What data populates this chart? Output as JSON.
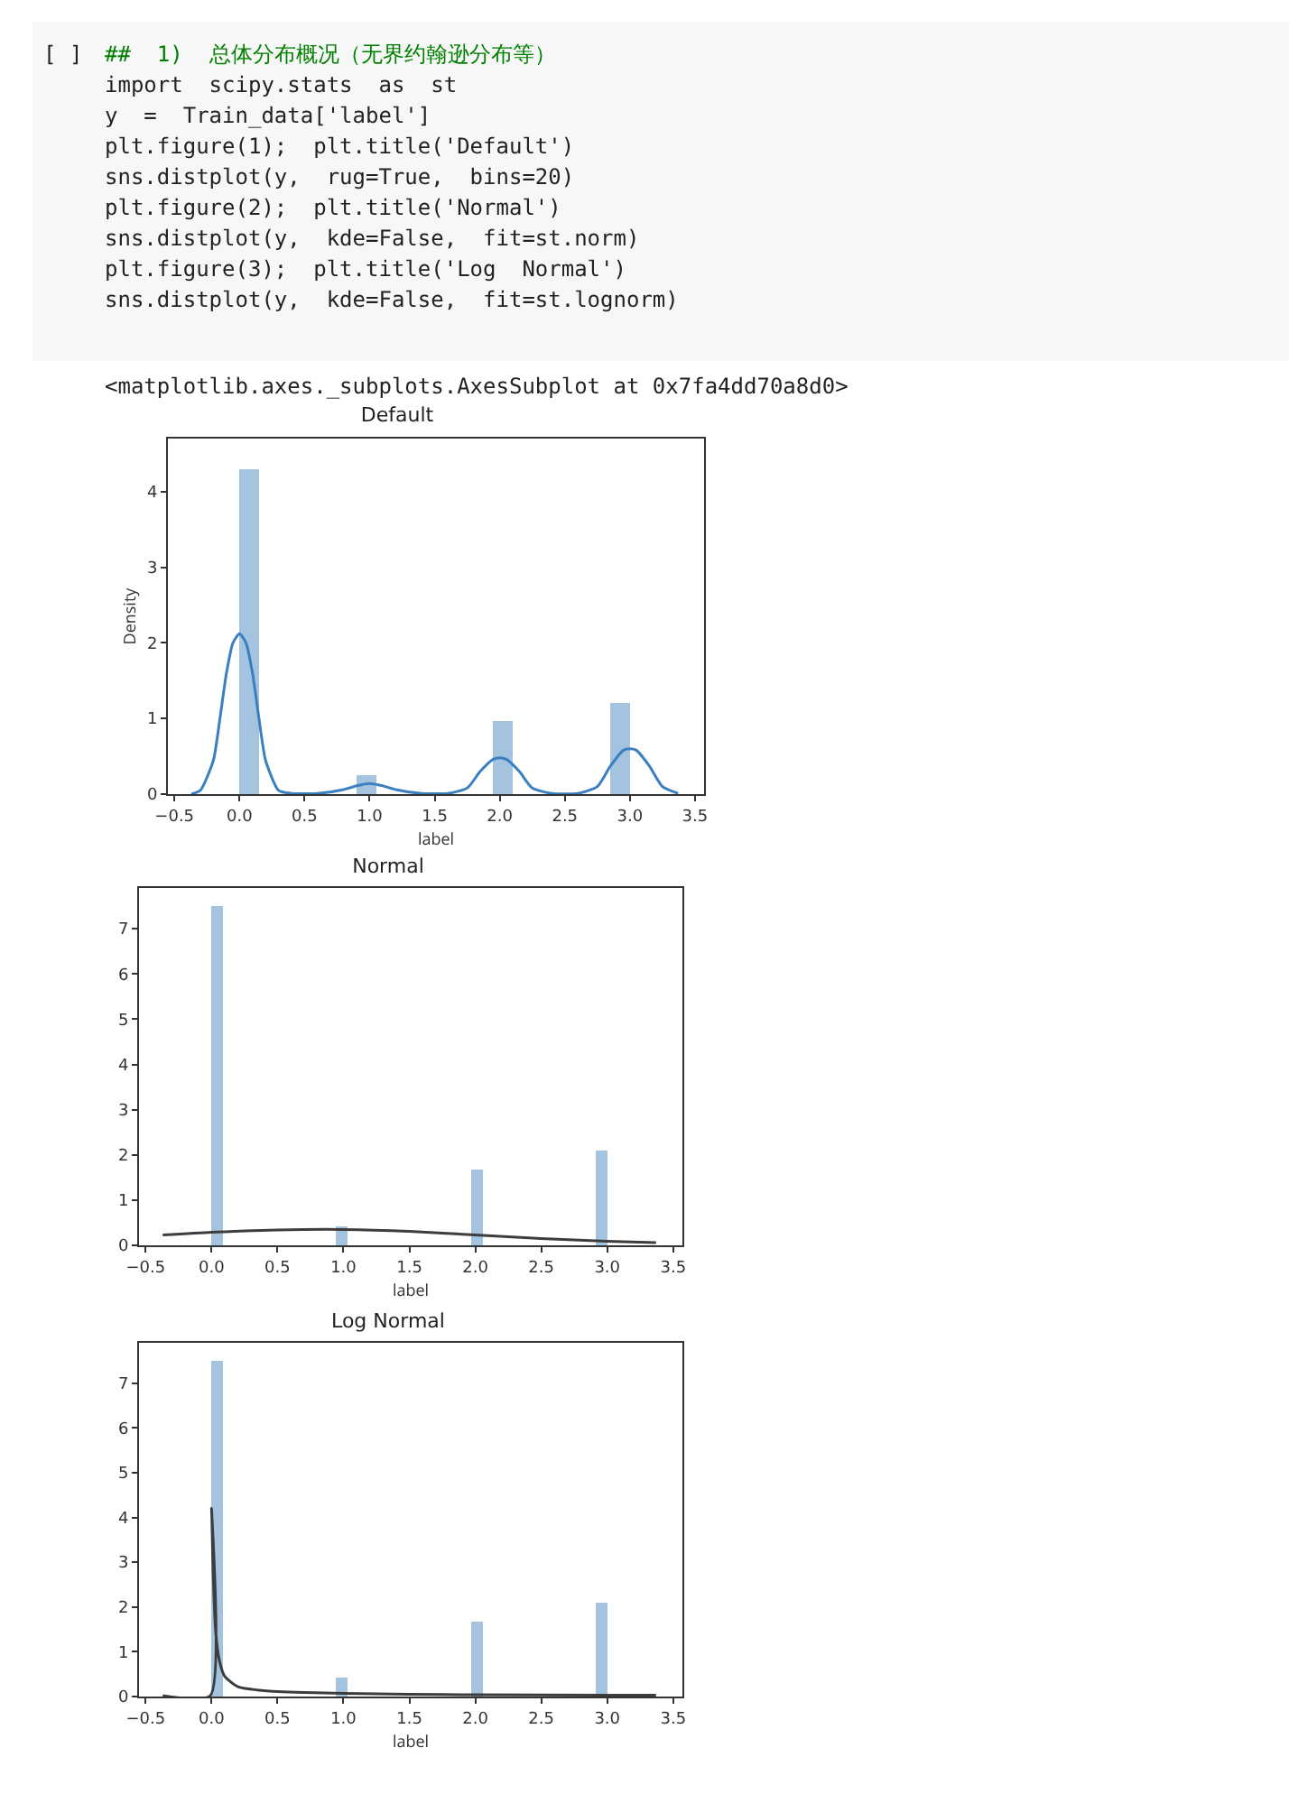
{
  "chart_data": [
    {
      "type": "histogram",
      "title": "Default",
      "xlabel": "label",
      "ylabel": "Density",
      "annotations": [
        "[ ]",
        "##  1)  总体分布概况（无界约翰逊分布等）",
        "import  scipy.stats  as  st",
        "y  =  Train_data['label']",
        "plt.figure(1);  plt.title('Default')",
        "sns.distplot(y,  rug=True,  bins=20)",
        "plt.figure(2);  plt.title('Normal')",
        "sns.distplot(y,  kde=False,  fit=st.norm)",
        "plt.figure(3);  plt.title('Log  Normal')",
        "sns.distplot(y,  kde=False,  fit=st.lognorm)",
        "<matplotlib.axes._subplots.AxesSubplot at 0x7fa4dd70a8d0>"
      ],
      "bins": [
        0,
        0.15,
        0.3,
        0.45,
        0.6,
        0.75,
        0.9,
        1.05,
        1.2,
        1.35,
        1.5,
        1.65,
        1.8,
        1.95,
        2.1,
        2.25,
        2.4,
        2.55,
        2.7,
        2.85,
        3.0
      ],
      "values": [
        4.3,
        0,
        0,
        0,
        0,
        0,
        0.25,
        0,
        0,
        0,
        0,
        0,
        0,
        0.97,
        0,
        0,
        0,
        0,
        0,
        1.2
      ],
      "color": "#a3c3df",
      "series": [
        {
          "type": "line",
          "color": "#3a80c0",
          "x": [
            -0.37,
            -0.3,
            -0.2,
            -0.15,
            -0.1,
            -0.05,
            0,
            0.05,
            0.1,
            0.15,
            0.2,
            0.3,
            0.4,
            0.6,
            0.8,
            0.9,
            1.0,
            1.1,
            1.2,
            1.4,
            1.6,
            1.75,
            1.85,
            1.95,
            2.0,
            2.05,
            2.15,
            2.25,
            2.4,
            2.6,
            2.75,
            2.85,
            2.95,
            3.0,
            3.05,
            3.15,
            3.25,
            3.37
          ],
          "values": [
            0,
            0.05,
            0.45,
            1.0,
            1.6,
            2.0,
            2.12,
            2.0,
            1.6,
            1.0,
            0.45,
            0.05,
            0.01,
            0.01,
            0.06,
            0.11,
            0.14,
            0.11,
            0.06,
            0.01,
            0.01,
            0.08,
            0.3,
            0.46,
            0.48,
            0.46,
            0.3,
            0.08,
            0.01,
            0.01,
            0.1,
            0.37,
            0.58,
            0.6,
            0.58,
            0.37,
            0.1,
            0.01
          ]
        }
      ],
      "xlim": [
        -0.55,
        3.57
      ],
      "ylim": [
        0,
        4.7
      ],
      "xticks": [
        {
          "value": -0.5,
          "label": "−0.5"
        },
        {
          "value": 0,
          "label": "0.0"
        },
        0.5,
        {
          "value": 1,
          "label": "1.0"
        },
        1.5,
        {
          "value": 2,
          "label": "2.0"
        },
        2.5,
        {
          "value": 3,
          "label": "3.0"
        },
        3.5
      ],
      "yticks": [
        0,
        1,
        2,
        3,
        4
      ],
      "grid": false
    },
    {
      "type": "histogram",
      "title": "Normal",
      "xlabel": "label",
      "bins": [
        0,
        0.086,
        0.171,
        0.257,
        0.343,
        0.429,
        0.514,
        0.6,
        0.686,
        0.771,
        0.857,
        0.943,
        1.029,
        1.114,
        1.2,
        1.286,
        1.371,
        1.457,
        1.543,
        1.629,
        1.714,
        1.8,
        1.886,
        1.971,
        2.057,
        2.143,
        2.229,
        2.314,
        2.4,
        2.486,
        2.571,
        2.657,
        2.743,
        2.829,
        2.914,
        3.0
      ],
      "values": [
        7.5,
        0,
        0,
        0,
        0,
        0,
        0,
        0,
        0,
        0,
        0,
        0.42,
        0,
        0,
        0,
        0,
        0,
        0,
        0,
        0,
        0,
        0,
        0,
        1.67,
        0,
        0,
        0,
        0,
        0,
        0,
        0,
        0,
        0,
        0,
        2.1
      ],
      "color": "#a3c3df",
      "series": [
        {
          "type": "line",
          "color": "#3d3d3d",
          "x": [
            -0.37,
            0,
            0.5,
            1.0,
            1.5,
            2.0,
            2.5,
            3.0,
            3.37
          ],
          "values": [
            0.23,
            0.29,
            0.34,
            0.35,
            0.31,
            0.23,
            0.15,
            0.09,
            0.06
          ]
        }
      ],
      "xlim": [
        -0.55,
        3.57
      ],
      "ylim": [
        0,
        7.9
      ],
      "xticks": [
        {
          "value": -0.5,
          "label": "−0.5"
        },
        {
          "value": 0,
          "label": "0.0"
        },
        0.5,
        {
          "value": 1,
          "label": "1.0"
        },
        1.5,
        {
          "value": 2,
          "label": "2.0"
        },
        2.5,
        {
          "value": 3,
          "label": "3.0"
        },
        3.5
      ],
      "yticks": [
        0,
        1,
        2,
        3,
        4,
        5,
        6,
        7
      ],
      "grid": false
    },
    {
      "type": "histogram",
      "title": "Log Normal",
      "xlabel": "label",
      "bins": [
        0,
        0.086,
        0.171,
        0.257,
        0.343,
        0.429,
        0.514,
        0.6,
        0.686,
        0.771,
        0.857,
        0.943,
        1.029,
        1.114,
        1.2,
        1.286,
        1.371,
        1.457,
        1.543,
        1.629,
        1.714,
        1.8,
        1.886,
        1.971,
        2.057,
        2.143,
        2.229,
        2.314,
        2.4,
        2.486,
        2.571,
        2.657,
        2.743,
        2.829,
        2.914,
        3.0
      ],
      "values": [
        7.5,
        0,
        0,
        0,
        0,
        0,
        0,
        0,
        0,
        0,
        0,
        0.42,
        0,
        0,
        0,
        0,
        0,
        0,
        0,
        0,
        0,
        0,
        0,
        1.67,
        0,
        0,
        0,
        0,
        0,
        0,
        0,
        0,
        0,
        0,
        2.1
      ],
      "color": "#a3c3df",
      "series": [
        {
          "type": "line",
          "color": "#3d3d3d",
          "x": [
            -0.37,
            -0.01,
            0,
            0.01,
            0.03,
            0.06,
            0.1,
            0.2,
            0.4,
            0.7,
            1.0,
            1.5,
            2.0,
            3.0,
            3.37
          ],
          "values": [
            0.02,
            0.02,
            4.2,
            3.0,
            1.5,
            0.8,
            0.45,
            0.22,
            0.13,
            0.09,
            0.07,
            0.05,
            0.04,
            0.03,
            0.03
          ]
        }
      ],
      "xlim": [
        -0.55,
        3.57
      ],
      "ylim": [
        0,
        7.9
      ],
      "xticks": [
        {
          "value": -0.5,
          "label": "−0.5"
        },
        {
          "value": 0,
          "label": "0.0"
        },
        0.5,
        {
          "value": 1,
          "label": "1.0"
        },
        1.5,
        {
          "value": 2,
          "label": "2.0"
        },
        2.5,
        {
          "value": 3,
          "label": "3.0"
        },
        3.5
      ],
      "yticks": [
        0,
        1,
        2,
        3,
        4,
        5,
        6,
        7
      ],
      "grid": false
    }
  ]
}
